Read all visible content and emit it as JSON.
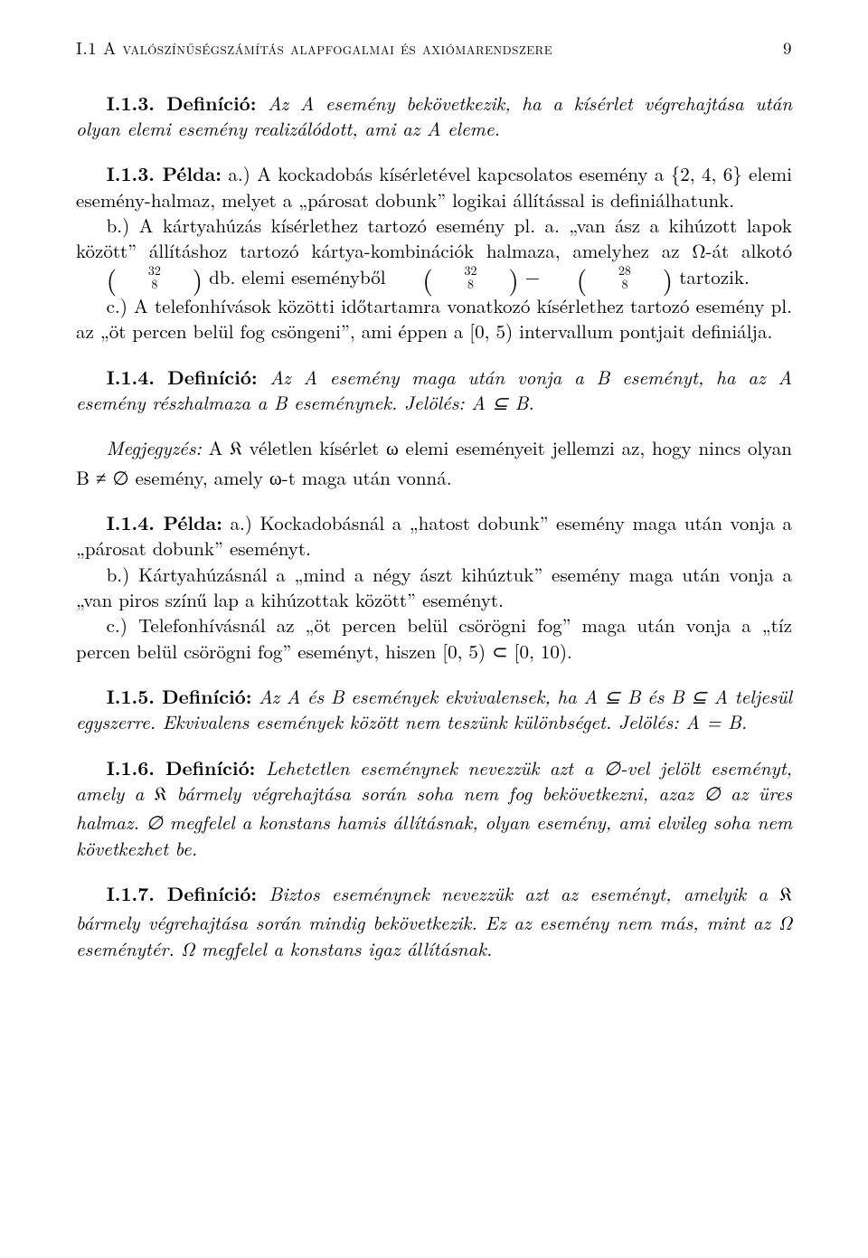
{
  "page": {
    "runhead_left": "I.1 A valószínűségszámítás alapfogalmai és axiómarendszere",
    "runhead_right": "9"
  },
  "def13_label": "I.1.3. Definíció:",
  "def13_text": " Az A esemény bekövetkezik, ha a kísérlet végrehajtása után olyan elemi esemény realizálódott, ami az A eleme.",
  "ex13_label": "I.1.3. Példa:",
  "ex13_a": " a.) A kockadobás kísérletével kapcsolatos esemény a {2, 4, 6} elemi esemény-halmaz, melyet a „párosat dobunk” logikai állítással is definiálhatunk.",
  "ex13_b": "b.) A kártyahúzás kísérlethez tartozó esemény pl. a. „van ász a kihúzott lapok között” állításhoz tartozó kártya-kombinációk halmaza, amelyhez az Ω-át alkotó ",
  "binom1_top": "32",
  "binom1_bot": "8",
  "ex13_b2": " db. elemi eseményből ",
  "binom2_top": "32",
  "binom2_bot": "8",
  "minus": " − ",
  "binom3_top": "28",
  "binom3_bot": "8",
  "ex13_b3": " tartozik.",
  "ex13_c": "c.) A telefonhívások közötti időtartamra vonatkozó kísérlethez tartozó esemény pl. az „öt percen belül fog csöngeni”, ami éppen a [0, 5) intervallum pontjait definiálja.",
  "def14_label": "I.1.4. Definíció:",
  "def14_text": " Az A esemény maga után vonja a B eseményt, ha az A esemény részhalmaza a B eseménynek. Jelölés: A ⊆ B.",
  "meg_label": "Megjegyzés:",
  "meg_text1": " A ",
  "frakK": "𝔎",
  "meg_text2": " véletlen kísérlet ω elemi eseményeit jellemzi az, hogy nincs olyan B ≠ ∅ esemény, amely ω-t maga után vonná.",
  "ex14_label": "I.1.4. Példa:",
  "ex14_a": " a.) Kockadobásnál a „hatost dobunk” esemény maga után vonja a „párosat dobunk” eseményt.",
  "ex14_b": "b.) Kártyahúzásnál a „mind a négy ászt kihúztuk” esemény maga után vonja a „van piros színű lap a kihúzottak között” eseményt.",
  "ex14_c": "c.) Telefonhívásnál az „öt percen belül csörögni fog” maga után vonja a „tíz percen belül csörögni fog” eseményt, hiszen [0, 5) ⊂ [0, 10).",
  "def15_label": "I.1.5. Definíció:",
  "def15_text": " Az A és B események ekvivalensek, ha A ⊆ B és B ⊆ A teljesül egyszerre. Ekvivalens események között nem teszünk különbséget. Jelölés: A = B.",
  "def16_label": "I.1.6. Definíció:",
  "def16_text1": " Lehetetlen eseménynek nevezzük azt a ∅-vel jelölt eseményt, amely a ",
  "def16_text2": " bármely végrehajtása során soha nem fog bekövetkezni, azaz ∅ az üres halmaz. ∅ megfelel a konstans hamis állításnak, olyan esemény, ami elvileg soha nem következhet be.",
  "def17_label": "I.1.7. Definíció:",
  "def17_text1": " Biztos eseménynek nevezzük azt az eseményt, amelyik a ",
  "def17_text2": " bármely végrehajtása során mindig bekövetkezik. Ez az esemény nem más, mint az Ω eseménytér. Ω megfelel a konstans igaz állításnak."
}
